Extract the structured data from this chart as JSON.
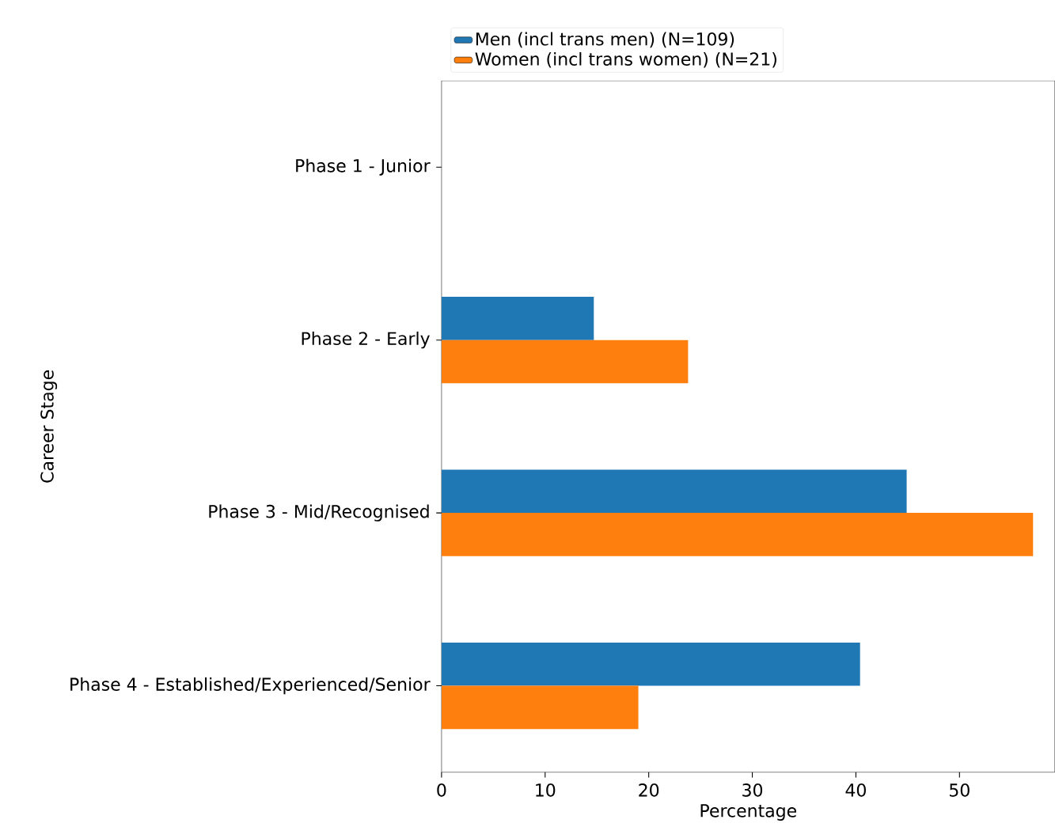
{
  "chart_data": {
    "type": "bar",
    "orientation": "horizontal",
    "xlabel": "Percentage",
    "ylabel": "Career Stage",
    "categories": [
      "Phase 1 - Junior",
      "Phase 2 - Early",
      "Phase 3 - Mid/Recognised",
      "Phase 4 - Established/Experienced/Senior"
    ],
    "series": [
      {
        "name": "Men (incl trans men) (N=109)",
        "color": "#1f77b4",
        "values": [
          0,
          14.7,
          44.9,
          40.4
        ]
      },
      {
        "name": "Women (incl trans women) (N=21)",
        "color": "#ff7f0e",
        "values": [
          0,
          23.8,
          57.1,
          19.0
        ]
      }
    ],
    "xlim": [
      0,
      59.2
    ],
    "xticks": [
      0,
      10,
      20,
      30,
      40,
      50
    ],
    "legend": "top"
  }
}
